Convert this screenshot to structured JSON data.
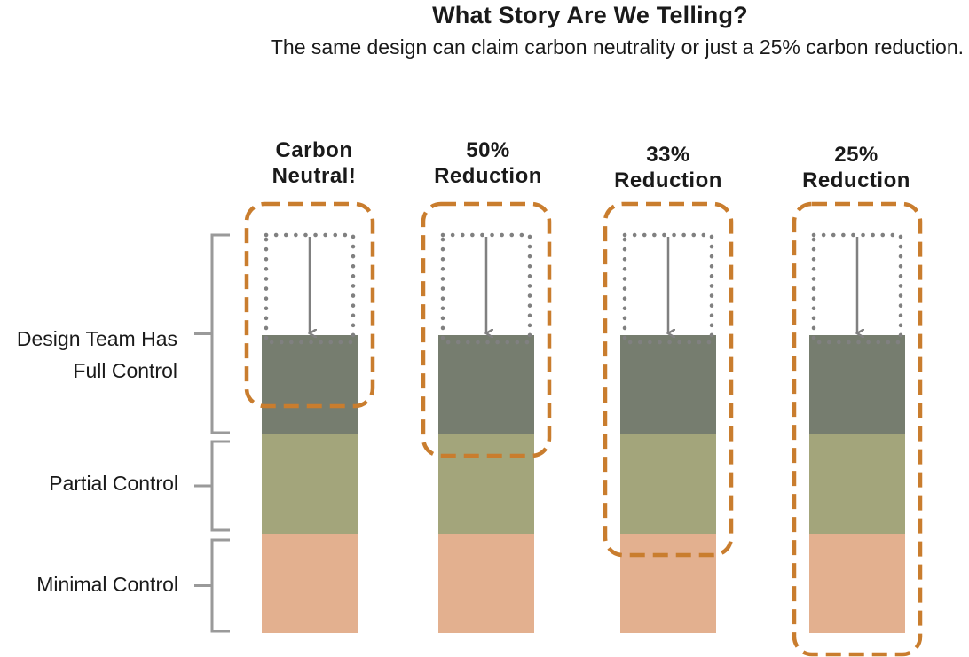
{
  "header": {
    "title": "What Story Are We Telling?",
    "subtitle": "The same design can claim carbon neutrality or just a 25% carbon reduction."
  },
  "rows": [
    {
      "label": "Design Team Has Full Control",
      "line1": "Design Team Has",
      "line2": "Full Control",
      "color": "#767d6f"
    },
    {
      "label": "Partial Control",
      "color": "#a3a57b"
    },
    {
      "label": "Minimal Control",
      "color": "#e3b08f"
    }
  ],
  "scenarios": [
    {
      "line1": "Carbon",
      "line2": "Neutral!",
      "rows_included": 0.5
    },
    {
      "line1": "50%",
      "line2": "Reduction",
      "rows_included": 1
    },
    {
      "line1": "33%",
      "line2": "Reduction",
      "rows_included": 2
    },
    {
      "line1": "25%",
      "line2": "Reduction",
      "rows_included": 3
    }
  ],
  "colors": {
    "highlight": "#c97d2e",
    "target": "#808080",
    "bracket": "#9a9a9a",
    "text": "#1a1a1a"
  }
}
